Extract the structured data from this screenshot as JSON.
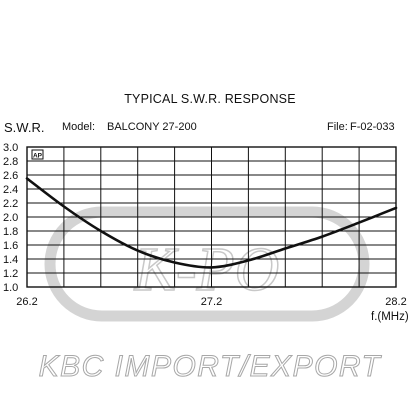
{
  "header": {
    "title": "TYPICAL S.W.R. RESPONSE",
    "y_axis_label": "S.W.R.",
    "model_label": "Model:",
    "model": "BALCONY 27-200",
    "file_label": "File:",
    "file": "F-02-033"
  },
  "x_axis_unit": "f.(MHz)",
  "corner_mark": "AP",
  "watermark": "K-PO",
  "footer": "KBC IMPORT/EXPORT",
  "colors": {
    "curve": "#111111",
    "grid": "#111111",
    "watermark": "#c8c8c8",
    "footer_outline": "#a8a8a8"
  },
  "chart_data": {
    "type": "line",
    "title": "TYPICAL S.W.R. RESPONSE",
    "xlabel": "f.(MHz)",
    "ylabel": "S.W.R.",
    "xlim": [
      26.2,
      28.2
    ],
    "ylim": [
      1.0,
      3.0
    ],
    "x_ticks": [
      "26.2",
      "27.2",
      "28.2"
    ],
    "y_ticks": [
      "1.0",
      "1.2",
      "1.4",
      "1.6",
      "1.8",
      "2.0",
      "2.2",
      "2.4",
      "2.6",
      "2.8",
      "3.0"
    ],
    "grid": true,
    "series": [
      {
        "x": [
          26.2,
          26.4,
          26.6,
          26.8,
          27.0,
          27.2,
          27.4,
          27.6,
          27.8,
          28.0,
          28.2
        ],
        "y": [
          2.55,
          2.15,
          1.8,
          1.52,
          1.35,
          1.28,
          1.38,
          1.55,
          1.72,
          1.92,
          2.13
        ]
      }
    ]
  }
}
